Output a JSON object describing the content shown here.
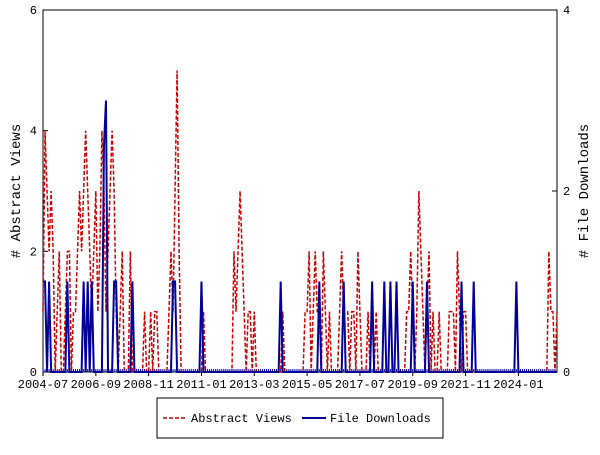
{
  "chart_data": {
    "type": "line",
    "y_label": "# Abstract Views",
    "y2_label": "# File Downloads",
    "ylim": [
      0,
      6
    ],
    "yticks": [
      0,
      2,
      4,
      6
    ],
    "y2lim": [
      0,
      4
    ],
    "y2ticks": [
      0,
      2,
      4
    ],
    "legend": "bottom",
    "categories": [
      "2004-07",
      null,
      null,
      null,
      null,
      null,
      null,
      null,
      null,
      null,
      null,
      null,
      null,
      null,
      null,
      null,
      null,
      null,
      null,
      null,
      null,
      null,
      null,
      null,
      null,
      null,
      "2006-09",
      null,
      null,
      null,
      null,
      null,
      null,
      null,
      null,
      null,
      null,
      null,
      null,
      null,
      null,
      null,
      null,
      null,
      null,
      null,
      null,
      null,
      null,
      null,
      null,
      null,
      "2008-11",
      null,
      null,
      null,
      null,
      null,
      null,
      null,
      null,
      null,
      null,
      null,
      null,
      null,
      null,
      null,
      null,
      null,
      null,
      null,
      null,
      null,
      null,
      null,
      null,
      null,
      "2011-01",
      null,
      null,
      null,
      null,
      null,
      null,
      null,
      null,
      null,
      null,
      null,
      null,
      null,
      null,
      null,
      null,
      null,
      null,
      null,
      null,
      null,
      null,
      null,
      null,
      null,
      "2013-03",
      null,
      null,
      null,
      null,
      null,
      null,
      null,
      null,
      null,
      null,
      null,
      null,
      null,
      null,
      null,
      null,
      null,
      null,
      null,
      null,
      null,
      null,
      null,
      null,
      null,
      "2015-05",
      null,
      null,
      null,
      null,
      null,
      null,
      null,
      null,
      null,
      null,
      null,
      null,
      null,
      null,
      null,
      null,
      null,
      null,
      null,
      null,
      null,
      null,
      null,
      null,
      null,
      "2017-07",
      null,
      null,
      null,
      null,
      null,
      null,
      null,
      null,
      null,
      null,
      null,
      null,
      null,
      null,
      null,
      null,
      null,
      null,
      null,
      null,
      null,
      null,
      null,
      null,
      null,
      "2019-09",
      null,
      null,
      null,
      null,
      null,
      null,
      null,
      null,
      null,
      null,
      null,
      null,
      null,
      null,
      null,
      null,
      null,
      null,
      null,
      null,
      null,
      null,
      null,
      null,
      null,
      "2021-11",
      null,
      null,
      null,
      null,
      null,
      null,
      null,
      null,
      null,
      null,
      null,
      null,
      null,
      null,
      null,
      null,
      null,
      null,
      null,
      null,
      null,
      null,
      null,
      null,
      null,
      "2024-01",
      null,
      null,
      null,
      null,
      null,
      null,
      null,
      null,
      null,
      null,
      null,
      null,
      null,
      null,
      null,
      null,
      null,
      null,
      null
    ],
    "series": [
      {
        "name": "Abstract Views",
        "color": "#cc0000",
        "dash": true,
        "values": [
          1,
          4,
          3,
          2,
          3,
          2,
          0,
          1,
          2,
          0,
          0,
          1,
          2,
          2,
          0,
          1,
          1,
          2,
          3,
          2,
          3,
          4,
          3,
          2,
          1,
          2,
          3,
          1,
          2,
          4,
          3,
          1,
          2,
          3,
          4,
          3,
          1,
          0,
          1,
          2,
          0,
          0,
          0,
          2,
          0,
          0,
          0,
          0,
          0,
          0,
          1,
          0,
          0,
          1,
          0,
          1,
          1,
          0,
          0,
          0,
          0,
          0,
          1,
          2,
          1,
          3,
          5,
          2,
          0,
          0,
          0,
          0,
          0,
          0,
          0,
          0,
          0,
          0,
          0,
          1,
          0,
          0,
          0,
          0,
          0,
          0,
          0,
          0,
          0,
          0,
          0,
          0,
          0,
          0,
          2,
          1,
          2,
          3,
          2,
          1,
          0,
          1,
          1,
          0,
          1,
          0,
          0,
          0,
          0,
          0,
          0,
          0,
          0,
          0,
          0,
          0,
          0,
          0,
          1,
          0,
          0,
          0,
          0,
          0,
          0,
          0,
          0,
          0,
          0,
          1,
          1,
          2,
          0,
          1,
          2,
          1,
          1,
          0,
          2,
          1,
          0,
          1,
          0,
          0,
          0,
          0,
          1,
          2,
          1,
          1,
          1,
          0,
          1,
          1,
          0,
          2,
          1,
          0,
          0,
          0,
          1,
          0,
          1,
          0,
          1,
          0,
          0,
          0,
          0,
          0,
          0,
          0,
          0,
          0,
          0,
          0,
          0,
          0,
          0,
          1,
          1,
          2,
          1,
          0,
          1,
          3,
          2,
          1,
          0,
          1,
          2,
          0,
          1,
          0,
          0,
          1,
          0,
          0,
          0,
          0,
          1,
          1,
          1,
          0,
          2,
          1,
          0,
          1,
          1,
          0,
          0,
          0,
          0,
          0,
          0,
          0,
          0,
          0,
          0,
          0,
          0,
          0,
          0,
          0,
          0,
          0,
          0,
          0,
          0,
          0,
          0,
          0,
          0,
          0,
          0,
          0,
          0,
          0,
          0,
          0,
          0,
          0,
          0,
          0,
          0,
          0,
          0,
          0,
          0,
          2,
          1,
          1,
          0,
          1
        ]
      },
      {
        "name": "File Downloads",
        "color": "#000099",
        "axis": "y2",
        "values": [
          1,
          1,
          0,
          1,
          0,
          0,
          0,
          0,
          0,
          0,
          0,
          0,
          1,
          0,
          0,
          0,
          0,
          0,
          0,
          0,
          1,
          0,
          1,
          0,
          1,
          0,
          0,
          0,
          0,
          0,
          2.5,
          3,
          0,
          0,
          0,
          1,
          1,
          0,
          0,
          0,
          0,
          0,
          0,
          0,
          1,
          0,
          0,
          0,
          0,
          0,
          0,
          0,
          0,
          0,
          0,
          0,
          0,
          0,
          0,
          0,
          0,
          0,
          0,
          0,
          1,
          1,
          0,
          0,
          0,
          0,
          0,
          0,
          0,
          0,
          0,
          0,
          0,
          0,
          1,
          0,
          0,
          0,
          0,
          0,
          0,
          0,
          0,
          0,
          0,
          0,
          0,
          0,
          0,
          0,
          0,
          0,
          0,
          0,
          0,
          0,
          0,
          0,
          0,
          0,
          0,
          0,
          0,
          0,
          0,
          0,
          0,
          0,
          0,
          0,
          0,
          0,
          0,
          1,
          0,
          0,
          0,
          0,
          0,
          0,
          0,
          0,
          0,
          0,
          0,
          0,
          0,
          0,
          0,
          0,
          0,
          0,
          1,
          0,
          0,
          0,
          0,
          0,
          0,
          0,
          0,
          0,
          0,
          0,
          1,
          0,
          0,
          0,
          0,
          0,
          0,
          0,
          0,
          0,
          0,
          0,
          0,
          0,
          1,
          0,
          0,
          0,
          0,
          0,
          1,
          0,
          0,
          1,
          0,
          0,
          1,
          0,
          0,
          0,
          0,
          0,
          0,
          0,
          1,
          0,
          0,
          0,
          0,
          0,
          0,
          1,
          0,
          0,
          0,
          0,
          0,
          0,
          0,
          0,
          0,
          0,
          0,
          0,
          0,
          0,
          0,
          0,
          1,
          0,
          0,
          0,
          0,
          0,
          1,
          0,
          0,
          0,
          0,
          0,
          0,
          0,
          0,
          0,
          0,
          0,
          0,
          0,
          0,
          0,
          0,
          0,
          0,
          0,
          0,
          1,
          0,
          0,
          0,
          0,
          0,
          0,
          0,
          0,
          0,
          0,
          0,
          0,
          0,
          0,
          0,
          0,
          0,
          0,
          0,
          0
        ]
      }
    ]
  }
}
